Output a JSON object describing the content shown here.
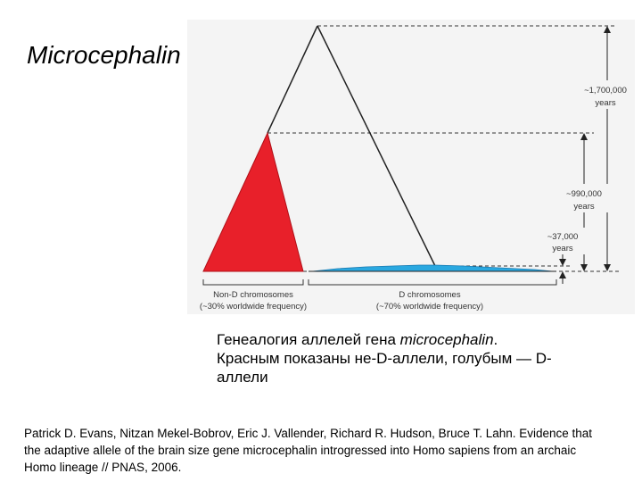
{
  "title": "Microcephalin",
  "diagram": {
    "ages": [
      {
        "value": "~1,700,000",
        "unit": "years"
      },
      {
        "value": "~990,000",
        "unit": "years"
      },
      {
        "value": "~37,000",
        "unit": "years"
      }
    ],
    "groups": [
      {
        "label": "Non-D chromosomes",
        "note": "(~30% worldwide frequency)",
        "color": "#e8202a"
      },
      {
        "label": "D chromosomes",
        "note": "(~70% worldwide frequency)",
        "color": "#2aa8e0"
      }
    ]
  },
  "caption": {
    "line1_prefix": "Генеалогия аллелей гена ",
    "line1_italic": "microcephalin",
    "line1_suffix": ".",
    "line2": "Красным показаны не-D-аллели, голубым — D-",
    "line3": "аллели"
  },
  "citation": "Patrick D. Evans, Nitzan Mekel-Bobrov, Eric J. Vallender, Richard R. Hudson, Bruce T. Lahn. Evidence that the adaptive allele of the brain size gene microcephalin introgressed into Homo sapiens from an archaic Homo lineage // PNAS, 2006."
}
